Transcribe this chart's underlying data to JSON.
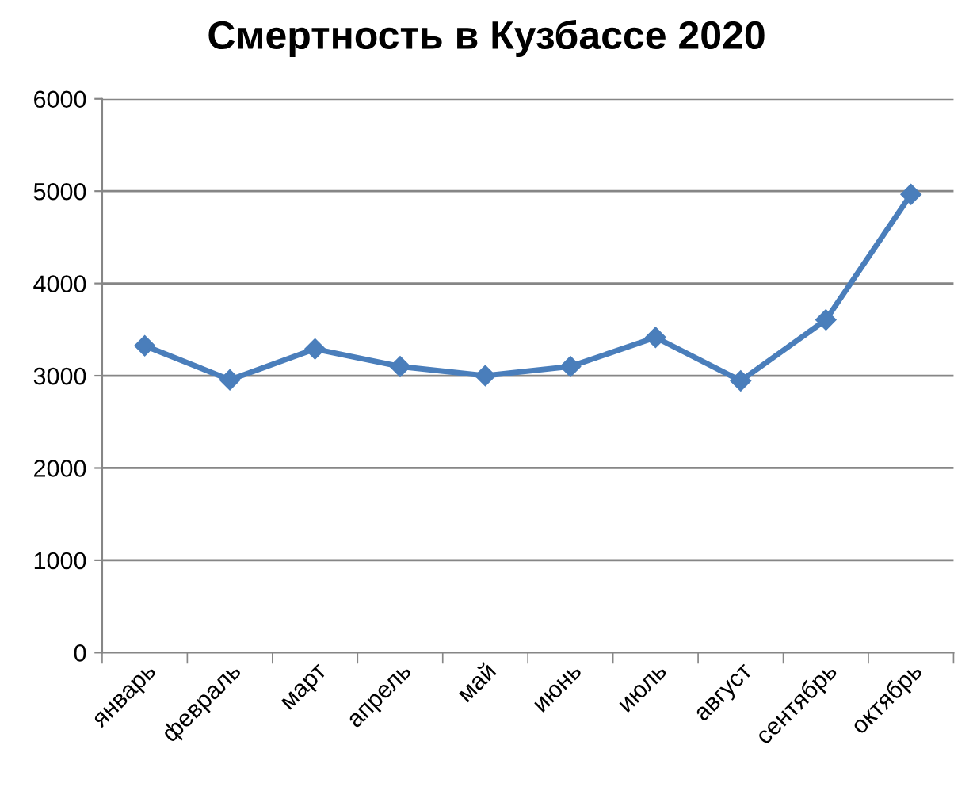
{
  "chart_data": {
    "type": "line",
    "title": "Смертность в Кузбассе 2020",
    "categories": [
      "январь",
      "февраль",
      "март",
      "апрель",
      "май",
      "июнь",
      "июль",
      "август",
      "сентябрь",
      "октябрь"
    ],
    "series": [
      {
        "color": "#4a7ebb",
        "values": [
          3325,
          2955,
          3290,
          3100,
          3000,
          3100,
          3415,
          2945,
          3605,
          4965
        ]
      }
    ],
    "ylim": [
      0,
      6000
    ],
    "yticks": [
      0,
      1000,
      2000,
      3000,
      4000,
      5000,
      6000
    ],
    "grid": "y",
    "marker": "diamond",
    "line_style": "solid",
    "legend": false
  }
}
